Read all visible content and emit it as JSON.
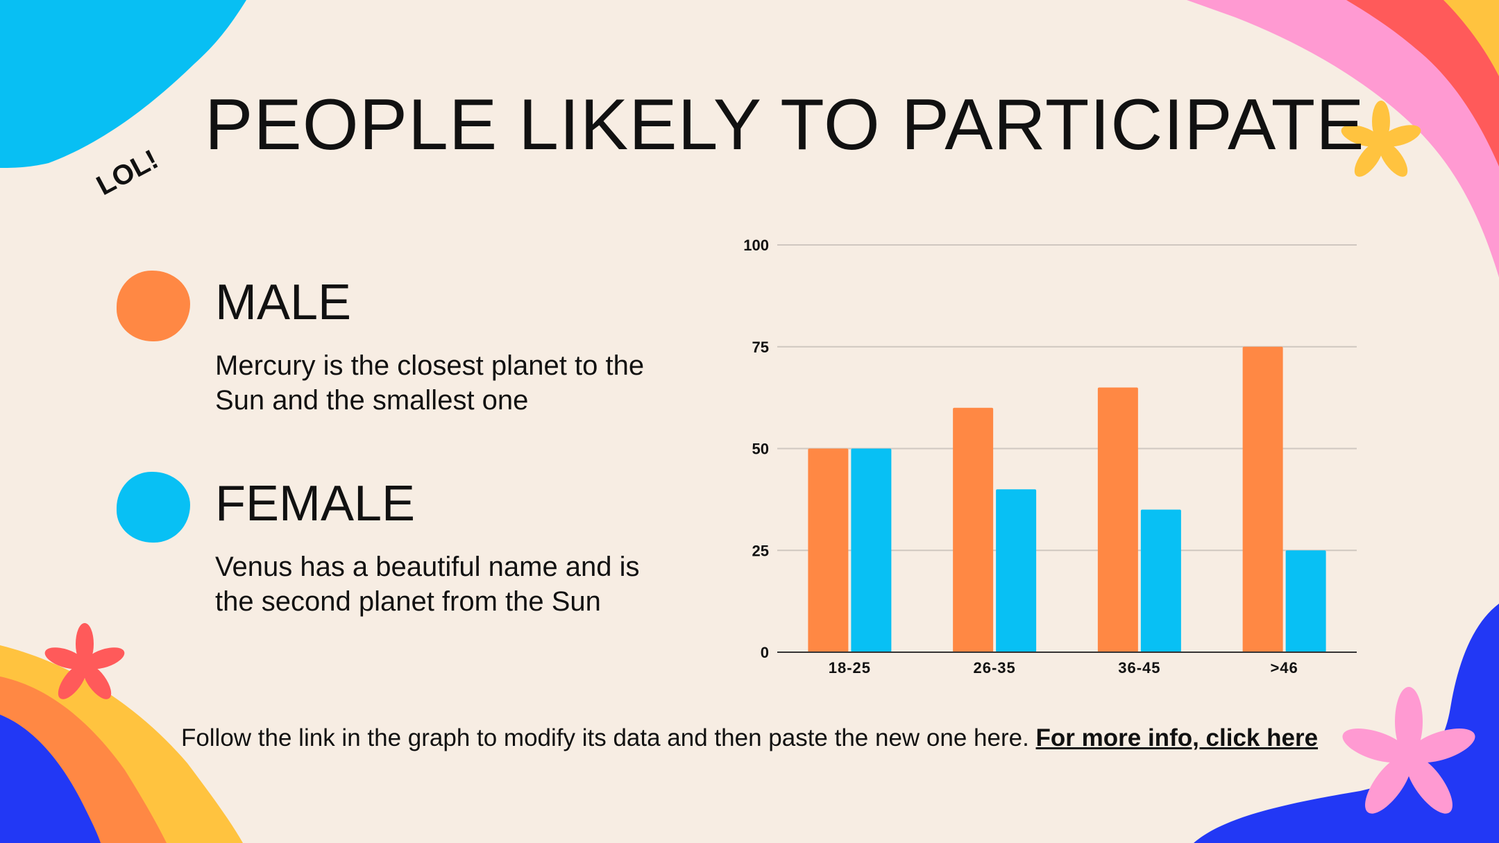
{
  "slide": {
    "title": "PEOPLE LIKELY TO PARTICIPATE",
    "sticker_text": "LOL!",
    "background_color": "#f7ede3"
  },
  "legend": [
    {
      "label": "MALE",
      "color": "#ff8844",
      "description": "Mercury is the closest planet to the Sun and the smallest one"
    },
    {
      "label": "FEMALE",
      "color": "#08c0f4",
      "description": "Venus has a beautiful name and is the second planet from the Sun"
    }
  ],
  "footer": {
    "text": "Follow the link in the graph to modify its data and then paste the new one here.",
    "link_text": "For more info, click here"
  },
  "chart_data": {
    "type": "bar",
    "categories": [
      "18-25",
      "26-35",
      "36-45",
      ">46"
    ],
    "series": [
      {
        "name": "MALE",
        "color": "#ff8844",
        "values": [
          50,
          60,
          65,
          75
        ]
      },
      {
        "name": "FEMALE",
        "color": "#08c0f4",
        "values": [
          50,
          40,
          35,
          25
        ]
      }
    ],
    "ylim": [
      0,
      100
    ],
    "yticks": [
      0,
      25,
      50,
      75,
      100
    ],
    "grid": true,
    "title": "",
    "xlabel": "",
    "ylabel": ""
  }
}
